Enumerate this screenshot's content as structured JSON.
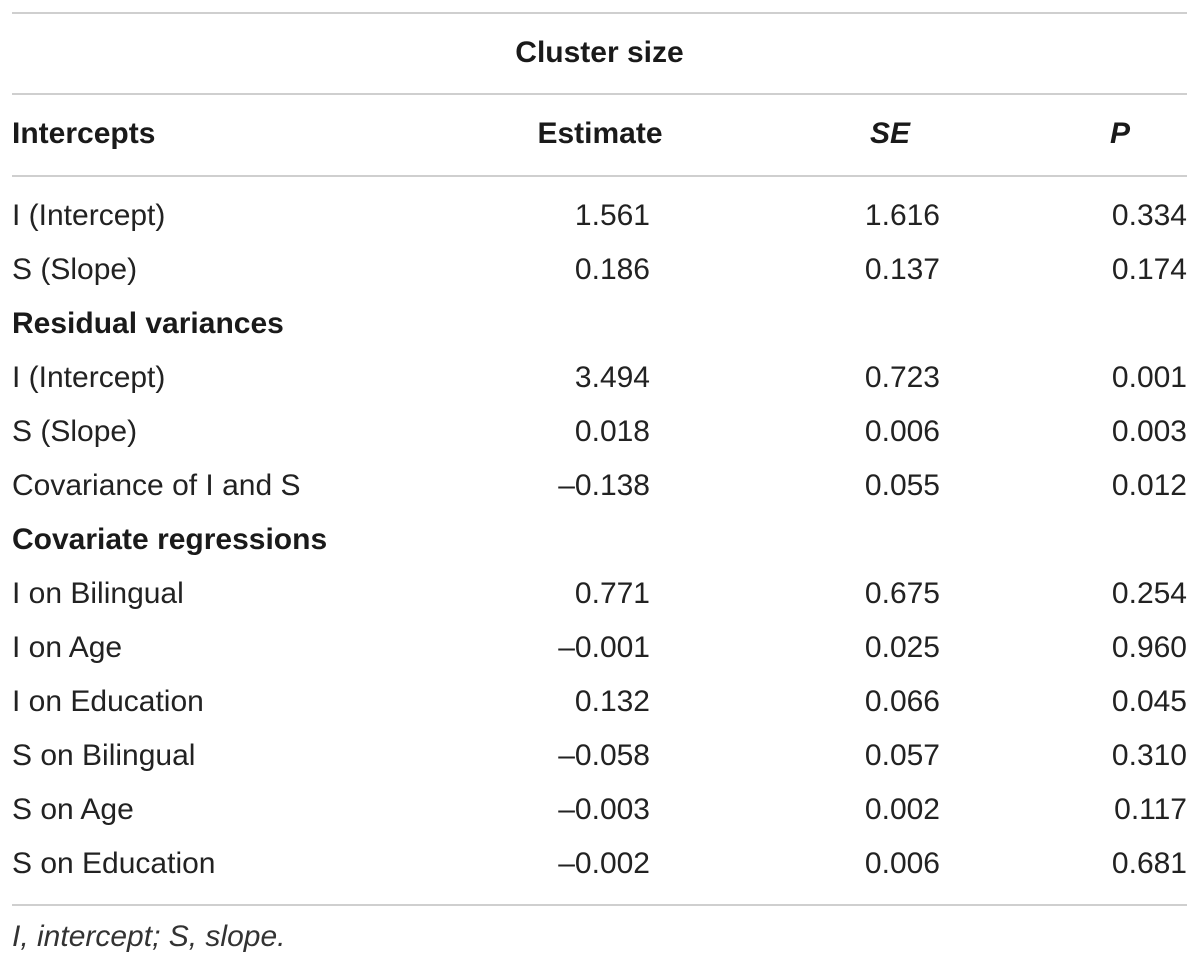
{
  "table": {
    "group_header": "Cluster size",
    "columns": {
      "label": "Intercepts",
      "estimate": "Estimate",
      "se": "SE",
      "p": "P"
    },
    "rows": [
      {
        "label": "I (Intercept)",
        "estimate": "1.561",
        "se": "1.616",
        "p": "0.334"
      },
      {
        "label": "S (Slope)",
        "estimate": "0.186",
        "se": "0.137",
        "p": "0.174"
      },
      {
        "section": "Residual variances"
      },
      {
        "label": "I (Intercept)",
        "estimate": "3.494",
        "se": "0.723",
        "p": "0.001"
      },
      {
        "label": "S (Slope)",
        "estimate": "0.018",
        "se": "0.006",
        "p": "0.003"
      },
      {
        "label": "Covariance of I and S",
        "estimate": "–0.138",
        "se": "0.055",
        "p": "0.012"
      },
      {
        "section": "Covariate regressions"
      },
      {
        "label": "I on Bilingual",
        "estimate": "0.771",
        "se": "0.675",
        "p": "0.254"
      },
      {
        "label": "I on Age",
        "estimate": "–0.001",
        "se": "0.025",
        "p": "0.960"
      },
      {
        "label": "I on Education",
        "estimate": "0.132",
        "se": "0.066",
        "p": "0.045"
      },
      {
        "label": "S on Bilingual",
        "estimate": "–0.058",
        "se": "0.057",
        "p": "0.310"
      },
      {
        "label": "S on Age",
        "estimate": "–0.003",
        "se": "0.002",
        "p": "0.117"
      },
      {
        "label": "S on Education",
        "estimate": "–0.002",
        "se": "0.006",
        "p": "0.681"
      }
    ],
    "footnote": "I, intercept; S, slope."
  }
}
